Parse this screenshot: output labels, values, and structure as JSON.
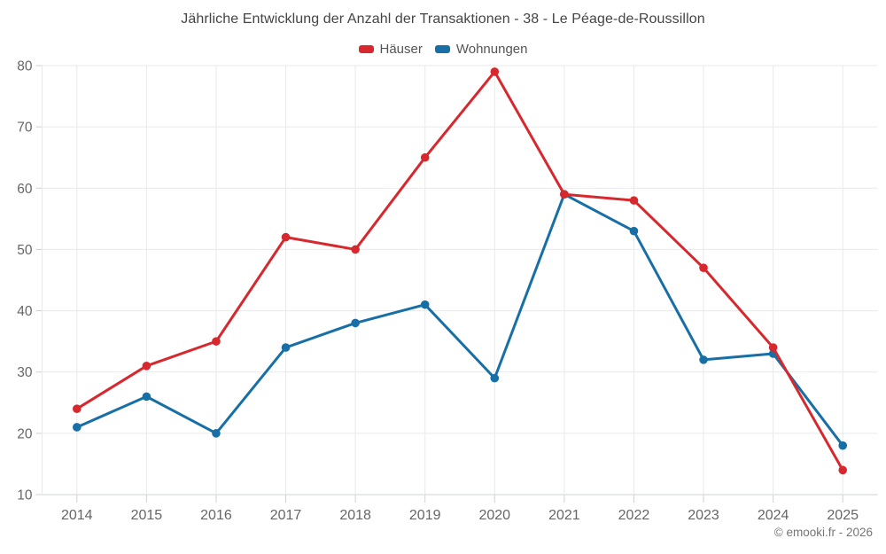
{
  "title": "Jährliche Entwicklung der Anzahl der Transaktionen - 38 - Le Péage-de-Roussillon",
  "footer": "© emooki.fr - 2026",
  "colors": {
    "haeuser_red": "#d7282e",
    "wohnungen_blue": "#176fa6",
    "axis_text": "#666666",
    "gridline": "#e9e9eb",
    "axis_line": "#cfd0d1"
  },
  "chart_data": {
    "type": "line",
    "title": "Jährliche Entwicklung der Anzahl der Transaktionen - 38 - Le Péage-de-Roussillon",
    "x": [
      2014,
      2015,
      2016,
      2017,
      2018,
      2019,
      2020,
      2021,
      2022,
      2023,
      2024,
      2025
    ],
    "series": [
      {
        "name": "Häuser",
        "color": "#d7282e",
        "values": [
          24,
          31,
          35,
          52,
          50,
          65,
          79,
          59,
          58,
          47,
          34,
          14
        ]
      },
      {
        "name": "Wohnungen",
        "color": "#176fa6",
        "values": [
          21,
          26,
          20,
          34,
          38,
          41,
          29,
          59,
          53,
          32,
          33,
          18
        ]
      }
    ],
    "xlabel": "",
    "ylabel": "",
    "ylim": [
      10,
      80
    ],
    "yticks": [
      10,
      20,
      30,
      40,
      50,
      60,
      70,
      80
    ],
    "grid": true,
    "legend_position": "top"
  }
}
